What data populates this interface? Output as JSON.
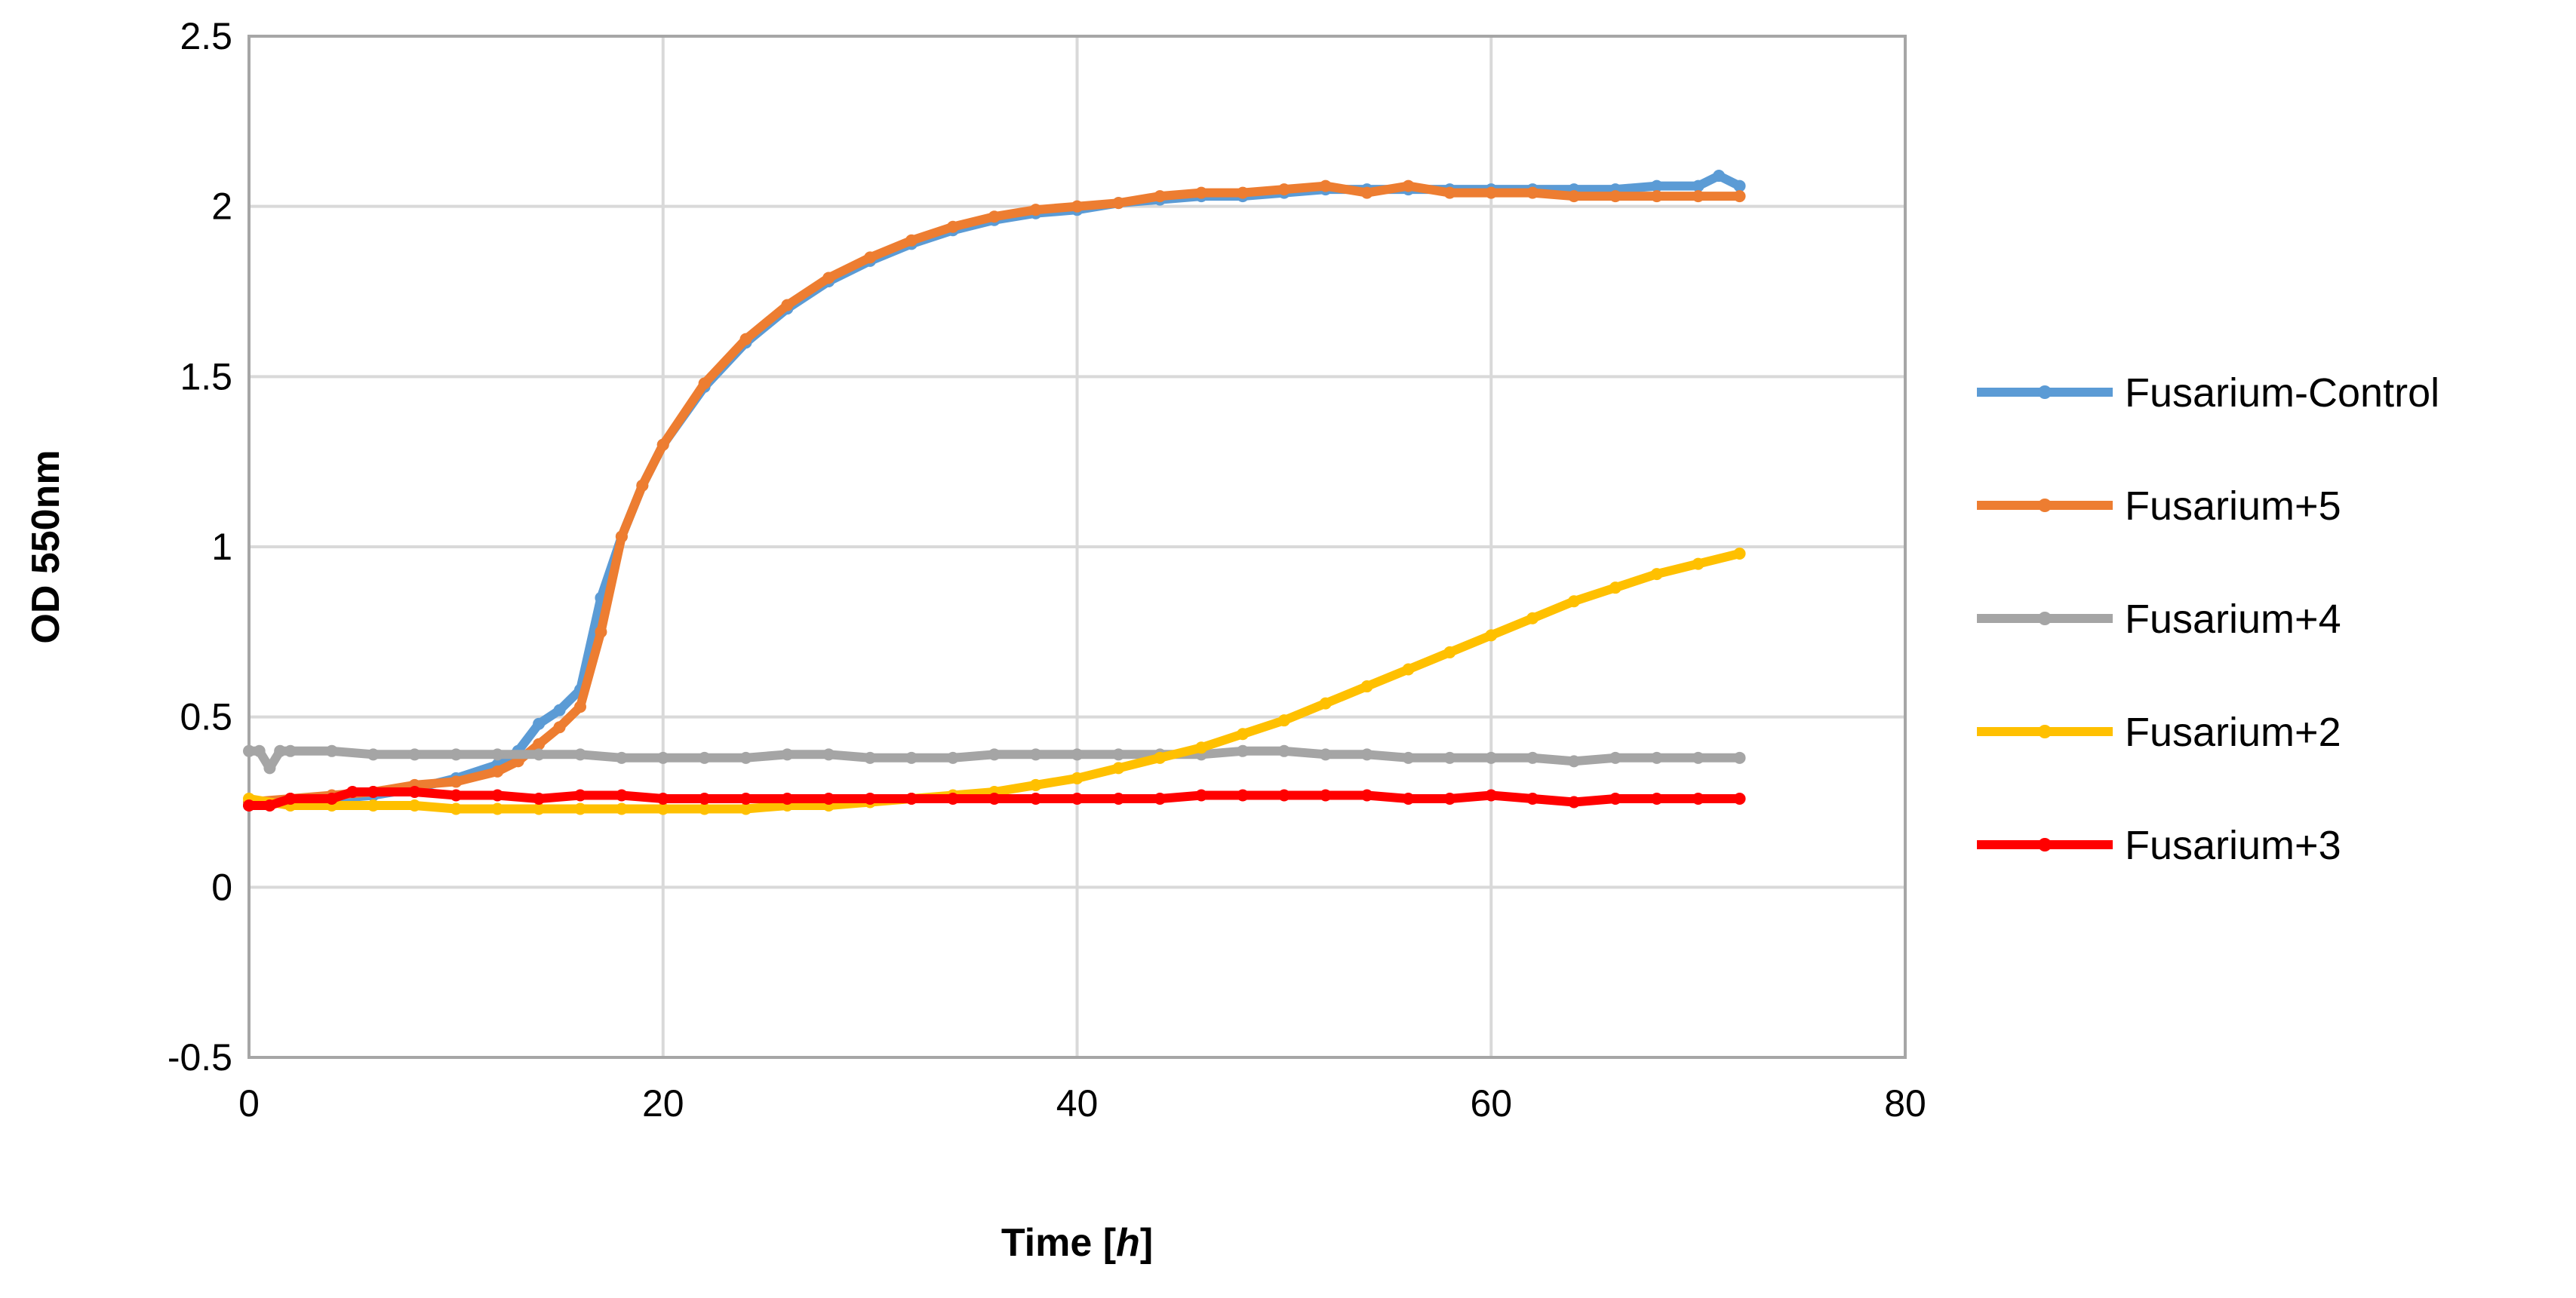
{
  "chart_data": {
    "type": "line",
    "xlabel_prefix": "Time [",
    "xlabel_unit": "h",
    "xlabel_suffix": "]",
    "ylabel": "OD 550nm",
    "xlim": [
      0,
      80
    ],
    "ylim": [
      -0.5,
      2.5
    ],
    "xticks": [
      0,
      20,
      40,
      60,
      80
    ],
    "yticks": [
      -0.5,
      0,
      0.5,
      1,
      1.5,
      2,
      2.5
    ],
    "ytick_labels": [
      "-0.5",
      "0",
      "0.5",
      "1",
      "1.5",
      "2",
      "2.5"
    ],
    "xtick_labels": [
      "0",
      "20",
      "40",
      "60",
      "80"
    ],
    "grid": true,
    "legend_position": "right",
    "series": [
      {
        "name": "Fusarium-Control",
        "color": "#5B9BD5",
        "x": [
          0,
          2,
          4,
          6,
          8,
          10,
          12,
          13,
          14,
          15,
          16,
          17,
          18,
          19,
          20,
          22,
          24,
          26,
          28,
          30,
          32,
          34,
          36,
          38,
          40,
          42,
          44,
          46,
          48,
          50,
          52,
          54,
          56,
          58,
          60,
          62,
          64,
          66,
          68,
          70,
          71,
          72
        ],
        "y": [
          0.24,
          0.25,
          0.26,
          0.27,
          0.29,
          0.32,
          0.36,
          0.4,
          0.48,
          0.52,
          0.58,
          0.85,
          1.03,
          1.18,
          1.3,
          1.47,
          1.6,
          1.7,
          1.78,
          1.84,
          1.89,
          1.93,
          1.96,
          1.98,
          1.99,
          2.01,
          2.02,
          2.03,
          2.03,
          2.04,
          2.05,
          2.05,
          2.05,
          2.05,
          2.05,
          2.05,
          2.05,
          2.05,
          2.06,
          2.06,
          2.09,
          2.06
        ]
      },
      {
        "name": "Fusarium+5",
        "color": "#ED7D31",
        "x": [
          0,
          2,
          4,
          6,
          8,
          10,
          12,
          13,
          14,
          15,
          16,
          17,
          18,
          19,
          20,
          22,
          24,
          26,
          28,
          30,
          32,
          34,
          36,
          38,
          40,
          42,
          44,
          46,
          48,
          50,
          52,
          54,
          56,
          58,
          60,
          62,
          64,
          66,
          68,
          70,
          72
        ],
        "y": [
          0.25,
          0.26,
          0.27,
          0.28,
          0.3,
          0.31,
          0.34,
          0.37,
          0.42,
          0.47,
          0.53,
          0.75,
          1.03,
          1.18,
          1.3,
          1.48,
          1.61,
          1.71,
          1.79,
          1.85,
          1.9,
          1.94,
          1.97,
          1.99,
          2.0,
          2.01,
          2.03,
          2.04,
          2.04,
          2.05,
          2.06,
          2.04,
          2.06,
          2.04,
          2.04,
          2.04,
          2.03,
          2.03,
          2.03,
          2.03,
          2.03
        ]
      },
      {
        "name": "Fusarium+4",
        "color": "#A5A5A5",
        "x": [
          0,
          0.5,
          1,
          1.5,
          2,
          4,
          6,
          8,
          10,
          12,
          14,
          16,
          18,
          20,
          22,
          24,
          26,
          28,
          30,
          32,
          34,
          36,
          38,
          40,
          42,
          44,
          46,
          48,
          50,
          52,
          54,
          56,
          58,
          60,
          62,
          64,
          66,
          68,
          70,
          72
        ],
        "y": [
          0.4,
          0.4,
          0.35,
          0.4,
          0.4,
          0.4,
          0.39,
          0.39,
          0.39,
          0.39,
          0.39,
          0.39,
          0.38,
          0.38,
          0.38,
          0.38,
          0.39,
          0.39,
          0.38,
          0.38,
          0.38,
          0.39,
          0.39,
          0.39,
          0.39,
          0.39,
          0.39,
          0.4,
          0.4,
          0.39,
          0.39,
          0.38,
          0.38,
          0.38,
          0.38,
          0.37,
          0.38,
          0.38,
          0.38,
          0.38
        ]
      },
      {
        "name": "Fusarium+2",
        "color": "#FFC000",
        "x": [
          0,
          2,
          4,
          6,
          8,
          10,
          12,
          14,
          16,
          18,
          20,
          22,
          24,
          26,
          28,
          30,
          32,
          34,
          36,
          38,
          40,
          42,
          44,
          46,
          48,
          50,
          52,
          54,
          56,
          58,
          60,
          62,
          64,
          66,
          68,
          70,
          72
        ],
        "y": [
          0.26,
          0.24,
          0.24,
          0.24,
          0.24,
          0.23,
          0.23,
          0.23,
          0.23,
          0.23,
          0.23,
          0.23,
          0.23,
          0.24,
          0.24,
          0.25,
          0.26,
          0.27,
          0.28,
          0.3,
          0.32,
          0.35,
          0.38,
          0.41,
          0.45,
          0.49,
          0.54,
          0.59,
          0.64,
          0.69,
          0.74,
          0.79,
          0.84,
          0.88,
          0.92,
          0.95,
          0.98
        ]
      },
      {
        "name": "Fusarium+3",
        "color": "#FF0000",
        "x": [
          0,
          1,
          2,
          4,
          5,
          6,
          8,
          10,
          12,
          14,
          16,
          18,
          20,
          22,
          24,
          26,
          28,
          30,
          32,
          34,
          36,
          38,
          40,
          42,
          44,
          46,
          48,
          50,
          52,
          54,
          56,
          58,
          60,
          62,
          64,
          66,
          68,
          70,
          72
        ],
        "y": [
          0.24,
          0.24,
          0.26,
          0.26,
          0.28,
          0.28,
          0.28,
          0.27,
          0.27,
          0.26,
          0.27,
          0.27,
          0.26,
          0.26,
          0.26,
          0.26,
          0.26,
          0.26,
          0.26,
          0.26,
          0.26,
          0.26,
          0.26,
          0.26,
          0.26,
          0.27,
          0.27,
          0.27,
          0.27,
          0.27,
          0.26,
          0.26,
          0.27,
          0.26,
          0.25,
          0.26,
          0.26,
          0.26,
          0.26
        ]
      }
    ]
  }
}
